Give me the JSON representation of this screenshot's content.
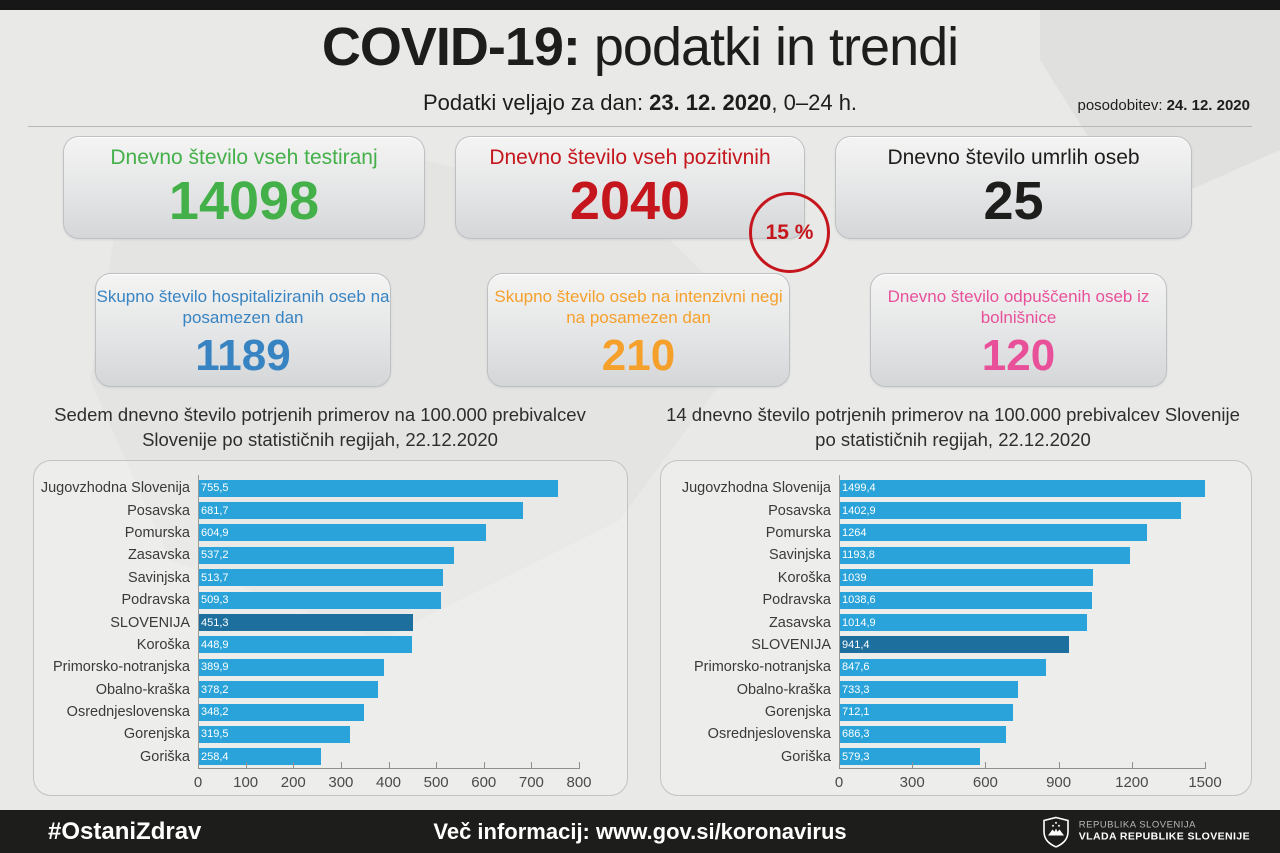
{
  "header": {
    "title_bold": "COVID-19:",
    "title_rest": " podatki in trendi",
    "subtitle_prefix": "Podatki veljajo za dan:",
    "subtitle_date": "23. 12. 2020",
    "subtitle_suffix": ", 0–24 h.",
    "update_label": "posodobitev:",
    "update_date": "24. 12. 2020"
  },
  "cards": [
    {
      "label": "Dnevno število vseh testiranj",
      "value": "14098",
      "color": "#44b049"
    },
    {
      "label": "Dnevno število vseh pozitivnih",
      "value": "2040",
      "color": "#c4161c",
      "badge": "15 %"
    },
    {
      "label": "Dnevno število umrlih oseb",
      "value": "25",
      "color": "#1d1d1b"
    },
    {
      "label": "Skupno število hospitaliziranih oseb na posamezen dan",
      "value": "1189",
      "color": "#3884c2"
    },
    {
      "label": "Skupno število oseb na intenzivni negi na posamezen dan",
      "value": "210",
      "color": "#f6a02c"
    },
    {
      "label": "Dnevno število odpuščenih oseb iz bolnišnice",
      "value": "120",
      "color": "#e8519a"
    }
  ],
  "badge": {
    "text": "15 %",
    "color": "#c4161c"
  },
  "chart_data": [
    {
      "type": "bar",
      "orientation": "horizontal",
      "title": "Sedem dnevno število potrjenih primerov na 100.000 prebivalcev Slovenije po statističnih regijah, 22.12.2020",
      "categories": [
        "Jugovzhodna Slovenija",
        "Posavska",
        "Pomurska",
        "Zasavska",
        "Savinjska",
        "Podravska",
        "SLOVENIJA",
        "Koroška",
        "Primorsko-notranjska",
        "Obalno-kraška",
        "Osrednjeslovenska",
        "Gorenjska",
        "Goriška"
      ],
      "values": [
        755.5,
        681.7,
        604.9,
        537.2,
        513.7,
        509.3,
        451.3,
        448.9,
        389.9,
        378.2,
        348.2,
        319.5,
        258.4
      ],
      "value_labels": [
        "755,5",
        "681,7",
        "604,9",
        "537,2",
        "513,7",
        "509,3",
        "451,3",
        "448,9",
        "389,9",
        "378,2",
        "348,2",
        "319,5",
        "258,4"
      ],
      "highlight": "SLOVENIJA",
      "xlim": [
        0,
        800
      ],
      "xticks": [
        0,
        100,
        200,
        300,
        400,
        500,
        600,
        700,
        800
      ],
      "bar_color": "#29a3d9",
      "highlight_color": "#1d6f9e",
      "grid": false,
      "legend": false
    },
    {
      "type": "bar",
      "orientation": "horizontal",
      "title": "14 dnevno število potrjenih primerov na 100.000 prebivalcev Slovenije po statističnih regijah, 22.12.2020",
      "categories": [
        "Jugovzhodna Slovenija",
        "Posavska",
        "Pomurska",
        "Savinjska",
        "Koroška",
        "Podravska",
        "Zasavska",
        "SLOVENIJA",
        "Primorsko-notranjska",
        "Obalno-kraška",
        "Gorenjska",
        "Osrednjeslovenska",
        "Goriška"
      ],
      "values": [
        1499.4,
        1402.9,
        1264,
        1193.8,
        1039,
        1038.6,
        1014.9,
        941.4,
        847.6,
        733.3,
        712.1,
        686.3,
        579.3
      ],
      "value_labels": [
        "1499,4",
        "1402,9",
        "1264",
        "1193,8",
        "1039",
        "1038,6",
        "1014,9",
        "941,4",
        "847,6",
        "733,3",
        "712,1",
        "686,3",
        "579,3"
      ],
      "highlight": "SLOVENIJA",
      "xlim": [
        0,
        1500
      ],
      "xticks": [
        0,
        300,
        600,
        900,
        1200,
        1500
      ],
      "bar_color": "#29a3d9",
      "highlight_color": "#1d6f9e",
      "grid": false,
      "legend": false
    }
  ],
  "footer": {
    "hashtag": "#OstaniZdrav",
    "info": "Več informacij: www.gov.si/koronavirus",
    "gov_line1": "REPUBLIKA SLOVENIJA",
    "gov_line2": "VLADA REPUBLIKE SLOVENIJE"
  }
}
